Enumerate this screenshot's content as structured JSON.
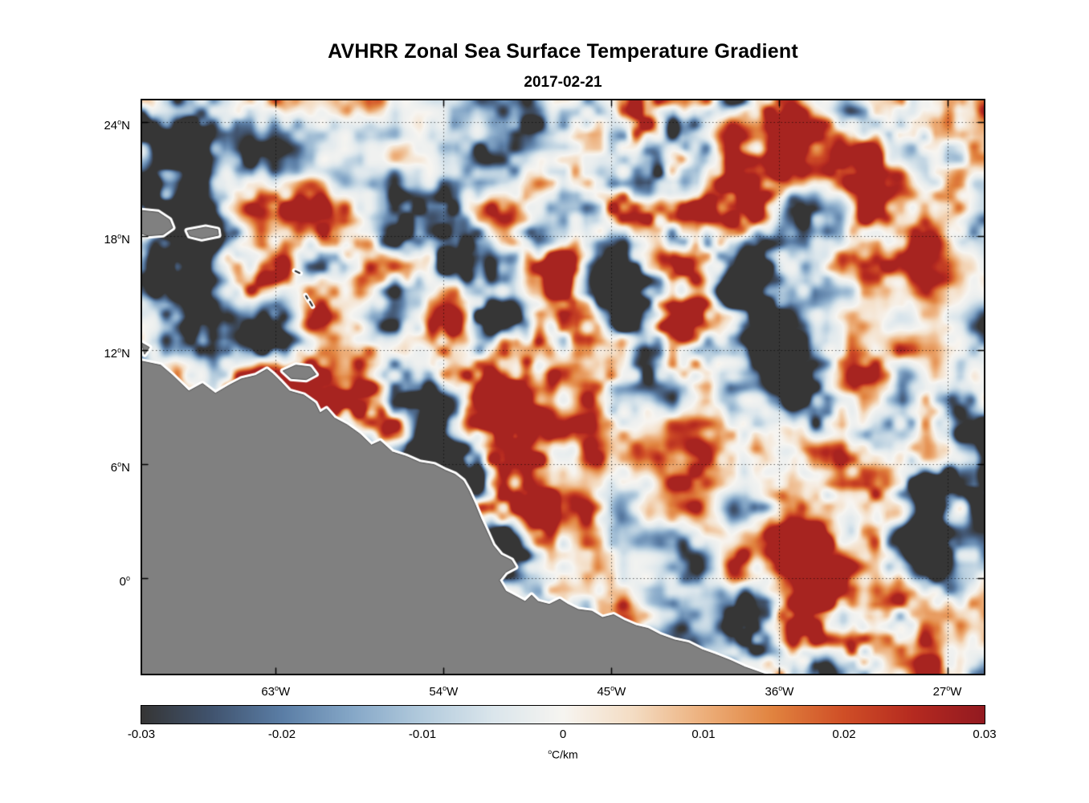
{
  "figure": {
    "title": "AVHRR Zonal Sea Surface Temperature Gradient",
    "date": "2017-02-21"
  },
  "chart_data": {
    "type": "heatmap",
    "title": "AVHRR Zonal Sea Surface Temperature Gradient",
    "subtitle": "2017-02-21",
    "xlabel": "",
    "ylabel": "",
    "grid": true,
    "x_axis": {
      "lon_range": [
        -70.2,
        -25.0
      ],
      "ticks": [
        {
          "label_deg": "63",
          "hem": "W",
          "lon": -63
        },
        {
          "label_deg": "54",
          "hem": "W",
          "lon": -54
        },
        {
          "label_deg": "45",
          "hem": "W",
          "lon": -45
        },
        {
          "label_deg": "36",
          "hem": "W",
          "lon": -36
        },
        {
          "label_deg": "27",
          "hem": "W",
          "lon": -27
        }
      ]
    },
    "y_axis": {
      "lat_range": [
        -5.05,
        25.2
      ],
      "ticks": [
        {
          "label_deg": "24",
          "hem": "N",
          "lat": 24
        },
        {
          "label_deg": "18",
          "hem": "N",
          "lat": 18
        },
        {
          "label_deg": "12",
          "hem": "N",
          "lat": 12
        },
        {
          "label_deg": "6",
          "hem": "N",
          "lat": 6
        },
        {
          "label_deg": "0",
          "hem": "",
          "lat": 0
        }
      ]
    },
    "colorbar": {
      "min": -0.03,
      "max": 0.03,
      "tick_labels": [
        "-0.03",
        "-0.02",
        "-0.01",
        "0",
        "0.01",
        "0.02",
        "0.03"
      ],
      "tick_values": [
        -0.03,
        -0.02,
        -0.01,
        0,
        0.01,
        0.02,
        0.03
      ],
      "units_label": "°C/km",
      "stops": [
        {
          "p": 0.0,
          "c": "#363636"
        },
        {
          "p": 0.083,
          "c": "#41546f"
        },
        {
          "p": 0.167,
          "c": "#5b7ea6"
        },
        {
          "p": 0.25,
          "c": "#86a8c8"
        },
        {
          "p": 0.333,
          "c": "#b3cbdd"
        },
        {
          "p": 0.417,
          "c": "#dbe6ec"
        },
        {
          "p": 0.5,
          "c": "#f7f5f1"
        },
        {
          "p": 0.583,
          "c": "#f4ddc4"
        },
        {
          "p": 0.667,
          "c": "#edb07c"
        },
        {
          "p": 0.75,
          "c": "#e1833f"
        },
        {
          "p": 0.833,
          "c": "#d04f27"
        },
        {
          "p": 0.917,
          "c": "#b52a20"
        },
        {
          "p": 1.0,
          "c": "#931a20"
        }
      ]
    },
    "land_color": "#808080",
    "coast_halo_color": "#ffffff",
    "land": {
      "main": [
        [
          0.0,
          0.455
        ],
        [
          0.0229,
          0.462
        ],
        [
          0.0372,
          0.48
        ],
        [
          0.0563,
          0.507
        ],
        [
          0.0725,
          0.494
        ],
        [
          0.0878,
          0.511
        ],
        [
          0.104,
          0.497
        ],
        [
          0.1183,
          0.486
        ],
        [
          0.1355,
          0.48
        ],
        [
          0.1489,
          0.469
        ],
        [
          0.1565,
          0.478
        ],
        [
          0.1641,
          0.489
        ],
        [
          0.1756,
          0.507
        ],
        [
          0.1927,
          0.514
        ],
        [
          0.2061,
          0.528
        ],
        [
          0.2118,
          0.545
        ],
        [
          0.2195,
          0.538
        ],
        [
          0.229,
          0.554
        ],
        [
          0.2443,
          0.566
        ],
        [
          0.2595,
          0.582
        ],
        [
          0.2729,
          0.601
        ],
        [
          0.2834,
          0.594
        ],
        [
          0.2977,
          0.613
        ],
        [
          0.3149,
          0.621
        ],
        [
          0.3302,
          0.631
        ],
        [
          0.3473,
          0.635
        ],
        [
          0.3607,
          0.645
        ],
        [
          0.3721,
          0.652
        ],
        [
          0.3817,
          0.663
        ],
        [
          0.3883,
          0.68
        ],
        [
          0.396,
          0.705
        ],
        [
          0.4027,
          0.729
        ],
        [
          0.4103,
          0.753
        ],
        [
          0.417,
          0.775
        ],
        [
          0.4265,
          0.792
        ],
        [
          0.4389,
          0.801
        ],
        [
          0.4437,
          0.813
        ],
        [
          0.4322,
          0.822
        ],
        [
          0.4246,
          0.836
        ],
        [
          0.4322,
          0.855
        ],
        [
          0.4437,
          0.864
        ],
        [
          0.4551,
          0.873
        ],
        [
          0.4628,
          0.862
        ],
        [
          0.4704,
          0.873
        ],
        [
          0.4838,
          0.878
        ],
        [
          0.4962,
          0.869
        ],
        [
          0.5057,
          0.878
        ],
        [
          0.5181,
          0.887
        ],
        [
          0.5344,
          0.89
        ],
        [
          0.5468,
          0.901
        ],
        [
          0.5601,
          0.896
        ],
        [
          0.5725,
          0.906
        ],
        [
          0.5868,
          0.915
        ],
        [
          0.6011,
          0.92
        ],
        [
          0.6155,
          0.931
        ],
        [
          0.6326,
          0.94
        ],
        [
          0.6489,
          0.945
        ],
        [
          0.6651,
          0.957
        ],
        [
          0.6822,
          0.966
        ],
        [
          0.6994,
          0.976
        ],
        [
          0.7156,
          0.987
        ],
        [
          0.7405,
          1.0
        ],
        [
          0.0,
          1.0
        ]
      ],
      "islands": [
        [
          [
            0.0,
            0.193
          ],
          [
            0.02,
            0.196
          ],
          [
            0.0334,
            0.209
          ],
          [
            0.0372,
            0.223
          ],
          [
            0.0258,
            0.235
          ],
          [
            0.0076,
            0.237
          ],
          [
            0.0,
            0.233
          ]
        ],
        [
          [
            0.0544,
            0.228
          ],
          [
            0.0763,
            0.222
          ],
          [
            0.0906,
            0.226
          ],
          [
            0.0916,
            0.236
          ],
          [
            0.0716,
            0.242
          ],
          [
            0.0573,
            0.237
          ]
        ],
        [
          [
            0.1679,
            0.472
          ],
          [
            0.1832,
            0.462
          ],
          [
            0.2004,
            0.465
          ],
          [
            0.2071,
            0.478
          ],
          [
            0.1956,
            0.487
          ],
          [
            0.1775,
            0.485
          ]
        ],
        [
          [
            0.0,
            0.423
          ],
          [
            0.0095,
            0.431
          ],
          [
            0.0038,
            0.443
          ]
        ]
      ],
      "islets": [
        [
          0.1851,
          0.3,
          25
        ],
        [
          0.1966,
          0.345,
          60
        ],
        [
          0.2013,
          0.355,
          60
        ]
      ]
    }
  }
}
